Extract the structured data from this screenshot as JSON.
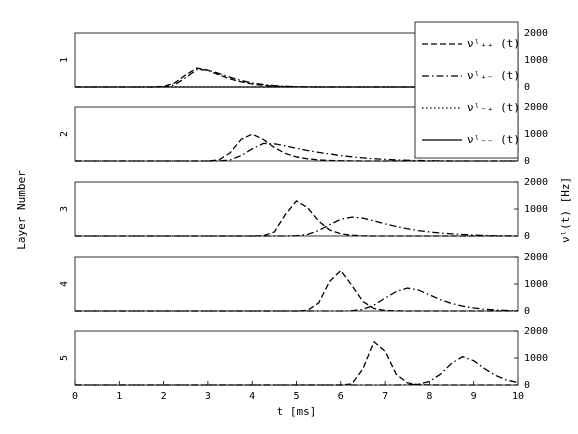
{
  "figure": {
    "y_title": "Layer Number",
    "y2_title": "νˡ(t) [Hz]"
  },
  "chart_data": [
    {
      "type": "line",
      "ylabel": "1",
      "xlim": [
        0,
        10
      ],
      "ylim": [
        0,
        2000
      ],
      "yticks": [
        0,
        1000,
        2000
      ],
      "x": [
        0,
        0.25,
        0.5,
        0.75,
        1,
        1.25,
        1.5,
        1.75,
        2,
        2.25,
        2.5,
        2.75,
        3,
        3.25,
        3.5,
        3.75,
        4,
        4.25,
        4.5,
        4.75,
        5,
        5.25,
        5.5,
        5.75,
        6,
        6.25,
        6.5,
        6.75,
        7,
        7.25,
        7.5,
        7.75,
        8,
        8.25,
        8.5,
        8.75,
        9,
        9.25,
        9.5,
        9.75,
        10
      ],
      "series": [
        {
          "name": "νˡ₊₊ (t)",
          "style": "dashed",
          "color": "#000000",
          "values": [
            0,
            0,
            0,
            0,
            0,
            0,
            0,
            0,
            20,
            150,
            450,
            700,
            620,
            450,
            300,
            190,
            110,
            60,
            30,
            15,
            5,
            0,
            0,
            0,
            0,
            0,
            0,
            0,
            0,
            0,
            0,
            0,
            0,
            0,
            0,
            0,
            0,
            0,
            0,
            0,
            0
          ]
        },
        {
          "name": "νˡ₊₋ (t)",
          "style": "dashdot",
          "color": "#000000",
          "values": [
            0,
            0,
            0,
            0,
            0,
            0,
            0,
            0,
            5,
            80,
            350,
            640,
            630,
            500,
            360,
            240,
            150,
            90,
            50,
            25,
            10,
            5,
            0,
            0,
            0,
            0,
            0,
            0,
            0,
            0,
            0,
            0,
            0,
            0,
            0,
            0,
            0,
            0,
            0,
            0,
            0
          ]
        },
        {
          "name": "νˡ₋₊ (t)",
          "style": "dotted",
          "color": "#000000",
          "values": [
            0,
            0,
            0,
            0,
            0,
            0,
            0,
            0,
            0,
            0,
            0,
            0,
            0,
            0,
            0,
            0,
            0,
            0,
            0,
            0,
            0,
            0,
            0,
            0,
            0,
            0,
            0,
            0,
            0,
            0,
            0,
            0,
            0,
            0,
            0,
            0,
            0,
            0,
            0,
            0,
            0
          ]
        },
        {
          "name": "νˡ₋₋ (t)",
          "style": "solid",
          "color": "#000000",
          "values": [
            0,
            0,
            0,
            0,
            0,
            0,
            0,
            0,
            0,
            0,
            0,
            0,
            0,
            0,
            0,
            0,
            0,
            0,
            0,
            0,
            0,
            0,
            0,
            0,
            0,
            0,
            0,
            0,
            0,
            0,
            0,
            0,
            0,
            0,
            0,
            0,
            0,
            0,
            0,
            0,
            0
          ]
        }
      ]
    },
    {
      "type": "line",
      "ylabel": "2",
      "xlim": [
        0,
        10
      ],
      "ylim": [
        0,
        2000
      ],
      "yticks": [
        0,
        1000,
        2000
      ],
      "x": [
        0,
        0.25,
        0.5,
        0.75,
        1,
        1.25,
        1.5,
        1.75,
        2,
        2.25,
        2.5,
        2.75,
        3,
        3.25,
        3.5,
        3.75,
        4,
        4.25,
        4.5,
        4.75,
        5,
        5.25,
        5.5,
        5.75,
        6,
        6.25,
        6.5,
        6.75,
        7,
        7.25,
        7.5,
        7.75,
        8,
        8.25,
        8.5,
        8.75,
        9,
        9.25,
        9.5,
        9.75,
        10
      ],
      "series": [
        {
          "style": "dashed",
          "color": "#000000",
          "values": [
            0,
            0,
            0,
            0,
            0,
            0,
            0,
            0,
            0,
            0,
            0,
            0,
            0,
            40,
            300,
            800,
            1000,
            800,
            500,
            280,
            150,
            80,
            40,
            20,
            10,
            5,
            0,
            0,
            0,
            0,
            0,
            0,
            0,
            0,
            0,
            0,
            0,
            0,
            0,
            0,
            0
          ]
        },
        {
          "style": "dashdot",
          "color": "#000000",
          "values": [
            0,
            0,
            0,
            0,
            0,
            0,
            0,
            0,
            0,
            0,
            0,
            0,
            0,
            0,
            40,
            200,
            450,
            650,
            640,
            560,
            470,
            390,
            320,
            260,
            200,
            155,
            115,
            85,
            60,
            40,
            28,
            18,
            10,
            5,
            0,
            0,
            0,
            0,
            0,
            0,
            0
          ]
        }
      ]
    },
    {
      "type": "line",
      "ylabel": "3",
      "xlim": [
        0,
        10
      ],
      "ylim": [
        0,
        2000
      ],
      "yticks": [
        0,
        1000,
        2000
      ],
      "x": [
        0,
        0.25,
        0.5,
        0.75,
        1,
        1.25,
        1.5,
        1.75,
        2,
        2.25,
        2.5,
        2.75,
        3,
        3.25,
        3.5,
        3.75,
        4,
        4.25,
        4.5,
        4.75,
        5,
        5.25,
        5.5,
        5.75,
        6,
        6.25,
        6.5,
        6.75,
        7,
        7.25,
        7.5,
        7.75,
        8,
        8.25,
        8.5,
        8.75,
        9,
        9.25,
        9.5,
        9.75,
        10
      ],
      "series": [
        {
          "style": "dashed",
          "color": "#000000",
          "values": [
            0,
            0,
            0,
            0,
            0,
            0,
            0,
            0,
            0,
            0,
            0,
            0,
            0,
            0,
            0,
            0,
            0,
            10,
            150,
            800,
            1300,
            1050,
            550,
            220,
            80,
            25,
            5,
            0,
            0,
            0,
            0,
            0,
            0,
            0,
            0,
            0,
            0,
            0,
            0,
            0,
            0
          ]
        },
        {
          "style": "dashdot",
          "color": "#000000",
          "values": [
            0,
            0,
            0,
            0,
            0,
            0,
            0,
            0,
            0,
            0,
            0,
            0,
            0,
            0,
            0,
            0,
            0,
            0,
            0,
            0,
            10,
            60,
            200,
            420,
            620,
            700,
            660,
            560,
            450,
            350,
            270,
            200,
            150,
            110,
            80,
            55,
            35,
            20,
            10,
            5,
            0
          ]
        }
      ]
    },
    {
      "type": "line",
      "ylabel": "4",
      "xlim": [
        0,
        10
      ],
      "ylim": [
        0,
        2000
      ],
      "yticks": [
        0,
        1000,
        2000
      ],
      "x": [
        0,
        0.25,
        0.5,
        0.75,
        1,
        1.25,
        1.5,
        1.75,
        2,
        2.25,
        2.5,
        2.75,
        3,
        3.25,
        3.5,
        3.75,
        4,
        4.25,
        4.5,
        4.75,
        5,
        5.25,
        5.5,
        5.75,
        6,
        6.25,
        6.5,
        6.75,
        7,
        7.25,
        7.5,
        7.75,
        8,
        8.25,
        8.5,
        8.75,
        9,
        9.25,
        9.5,
        9.75,
        10
      ],
      "series": [
        {
          "style": "dashed",
          "color": "#000000",
          "values": [
            0,
            0,
            0,
            0,
            0,
            0,
            0,
            0,
            0,
            0,
            0,
            0,
            0,
            0,
            0,
            0,
            0,
            0,
            0,
            0,
            0,
            20,
            300,
            1100,
            1500,
            950,
            350,
            90,
            20,
            5,
            0,
            0,
            0,
            0,
            0,
            0,
            0,
            0,
            0,
            0,
            0
          ]
        },
        {
          "style": "dashdot",
          "color": "#000000",
          "values": [
            0,
            0,
            0,
            0,
            0,
            0,
            0,
            0,
            0,
            0,
            0,
            0,
            0,
            0,
            0,
            0,
            0,
            0,
            0,
            0,
            0,
            0,
            0,
            0,
            0,
            10,
            60,
            220,
            480,
            720,
            850,
            780,
            600,
            420,
            280,
            180,
            110,
            65,
            35,
            18,
            8
          ]
        }
      ]
    },
    {
      "type": "line",
      "ylabel": "5",
      "xlabel": "t [ms]",
      "xlim": [
        0,
        10
      ],
      "ylim": [
        0,
        2000
      ],
      "yticks": [
        0,
        1000,
        2000
      ],
      "xticks": [
        0,
        1,
        2,
        3,
        4,
        5,
        6,
        7,
        8,
        9,
        10
      ],
      "x": [
        0,
        0.25,
        0.5,
        0.75,
        1,
        1.25,
        1.5,
        1.75,
        2,
        2.25,
        2.5,
        2.75,
        3,
        3.25,
        3.5,
        3.75,
        4,
        4.25,
        4.5,
        4.75,
        5,
        5.25,
        5.5,
        5.75,
        6,
        6.25,
        6.5,
        6.75,
        7,
        7.25,
        7.5,
        7.75,
        8,
        8.25,
        8.5,
        8.75,
        9,
        9.25,
        9.5,
        9.75,
        10
      ],
      "series": [
        {
          "style": "dashed",
          "color": "#000000",
          "values": [
            0,
            0,
            0,
            0,
            0,
            0,
            0,
            0,
            0,
            0,
            0,
            0,
            0,
            0,
            0,
            0,
            0,
            0,
            0,
            0,
            0,
            0,
            0,
            0,
            0,
            40,
            600,
            1600,
            1250,
            400,
            80,
            15,
            5,
            0,
            0,
            0,
            0,
            0,
            0,
            0,
            0
          ]
        },
        {
          "style": "dashdot",
          "color": "#000000",
          "values": [
            0,
            0,
            0,
            0,
            0,
            0,
            0,
            0,
            0,
            0,
            0,
            0,
            0,
            0,
            0,
            0,
            0,
            0,
            0,
            0,
            0,
            0,
            0,
            0,
            0,
            0,
            0,
            0,
            0,
            0,
            5,
            30,
            130,
            400,
            800,
            1050,
            900,
            600,
            350,
            180,
            90
          ]
        }
      ]
    }
  ]
}
